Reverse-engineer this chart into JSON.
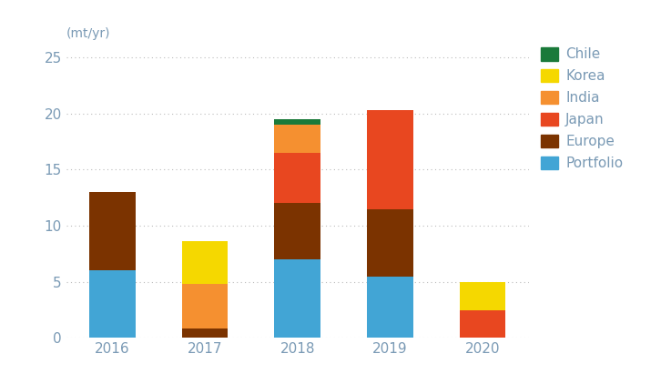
{
  "years": [
    "2016",
    "2017",
    "2018",
    "2019",
    "2020"
  ],
  "series": {
    "Portfolio": [
      6.0,
      0.0,
      7.0,
      5.5,
      0.0
    ],
    "Europe": [
      7.0,
      0.8,
      5.0,
      6.0,
      0.0
    ],
    "Japan": [
      0.0,
      0.0,
      4.5,
      8.8,
      2.5
    ],
    "India": [
      0.0,
      4.0,
      2.5,
      0.0,
      0.0
    ],
    "Korea": [
      0.0,
      3.8,
      0.0,
      0.0,
      2.5
    ],
    "Chile": [
      0.0,
      0.0,
      0.5,
      0.0,
      0.0
    ]
  },
  "colors": {
    "Portfolio": "#42a5d5",
    "Europe": "#7b3300",
    "Japan": "#e84720",
    "India": "#f59030",
    "Korea": "#f5d800",
    "Chile": "#1a7a3a"
  },
  "ylabel": "(mt/yr)",
  "ylim": [
    0,
    26
  ],
  "yticks": [
    0,
    5,
    10,
    15,
    20,
    25
  ],
  "bar_width": 0.5,
  "legend_order": [
    "Chile",
    "Korea",
    "India",
    "Japan",
    "Europe",
    "Portfolio"
  ],
  "background_color": "#ffffff",
  "grid_color": "#bbbbbb",
  "tick_color": "#7a9ab5",
  "label_color": "#7a9ab5"
}
